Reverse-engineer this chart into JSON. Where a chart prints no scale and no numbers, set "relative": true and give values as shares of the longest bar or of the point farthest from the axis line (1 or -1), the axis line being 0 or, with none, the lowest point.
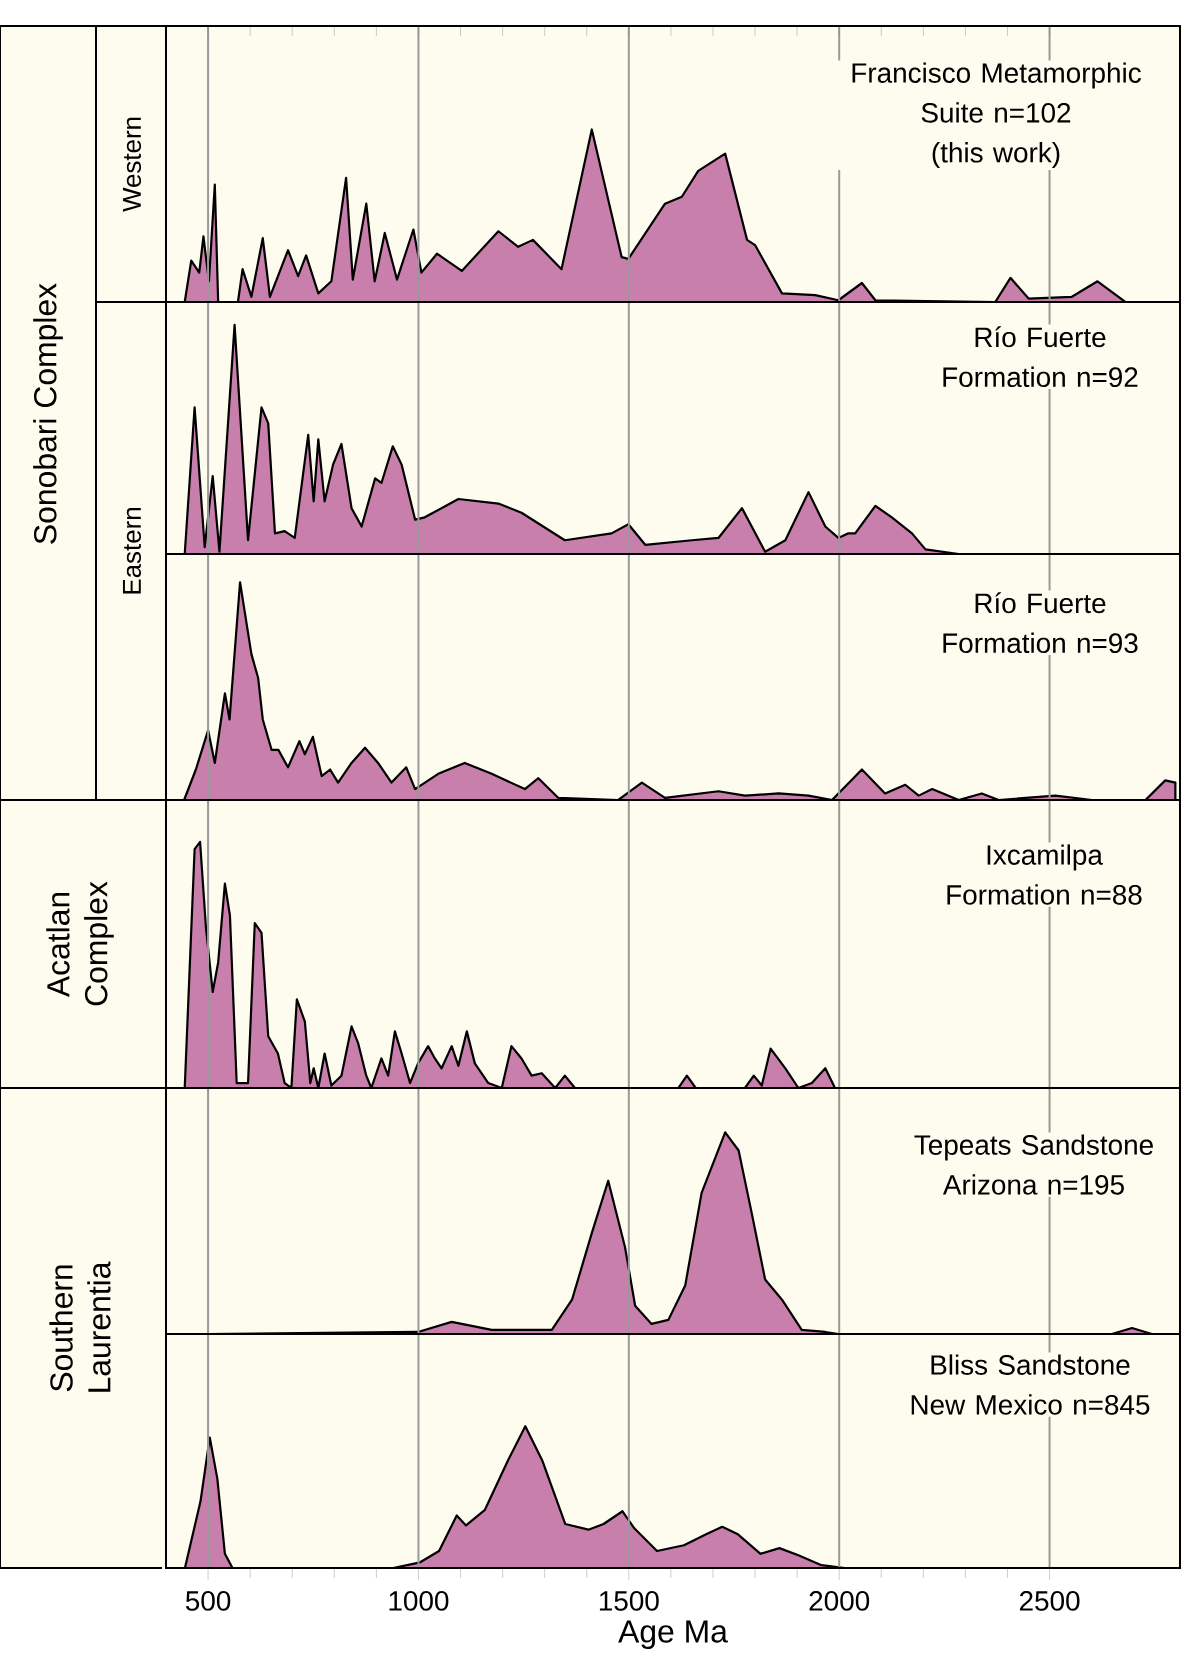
{
  "chart_data": [
    {
      "type": "area",
      "relative": true,
      "title": "Francisco  Metamorphic Suite n=102",
      "subtitle": "(this work)",
      "ylabel": "Western",
      "annotations": [
        "Sonobari Complex"
      ],
      "color": "#c97fac",
      "xlim": [
        400,
        2810
      ],
      "xticks": [
        500,
        1000,
        1500,
        2000,
        2500
      ],
      "grid": "x",
      "tick_labels": false,
      "x": [
        444.5,
        460,
        479,
        489,
        502,
        516,
        524,
        571,
        582,
        603,
        630,
        647,
        690,
        714,
        733,
        762,
        793,
        828,
        844,
        876,
        896,
        920,
        949,
        988,
        1007,
        1044,
        1103,
        1190,
        1237,
        1272,
        1340,
        1412,
        1483,
        1499,
        1586,
        1626,
        1665,
        1729,
        1781,
        1800,
        1864,
        1943,
        1998,
        2054,
        2086,
        2371,
        2407,
        2450,
        2553,
        2614,
        2680
      ],
      "values": [
        0,
        0.24,
        0.17,
        0.38,
        0.12,
        0.68,
        0,
        0,
        0.19,
        0.03,
        0.37,
        0.03,
        0.3,
        0.15,
        0.27,
        0.05,
        0.12,
        0.72,
        0.13,
        0.57,
        0.12,
        0.4,
        0.13,
        0.42,
        0.17,
        0.28,
        0.18,
        0.41,
        0.32,
        0.36,
        0.19,
        1,
        0.26,
        0.25,
        0.57,
        0.61,
        0.76,
        0.86,
        0.36,
        0.33,
        0.05,
        0.04,
        0.01,
        0.11,
        0.01,
        0,
        0.14,
        0.02,
        0.03,
        0.12,
        0
      ]
    },
    {
      "type": "area",
      "relative": true,
      "title": "Río Fuerte Formation n=92",
      "ylabel": "Eastern",
      "color": "#c97fac",
      "xlim": [
        400,
        2810
      ],
      "xticks": [
        500,
        1000,
        1500,
        2000,
        2500
      ],
      "grid": "x",
      "tick_labels": false,
      "x": [
        444.5,
        468,
        492,
        511,
        527,
        563,
        595,
        627,
        643,
        659,
        682,
        706,
        738,
        751,
        762,
        777,
        797,
        817,
        841,
        865,
        897,
        912,
        939,
        960,
        992,
        1015,
        1095,
        1190,
        1245,
        1348,
        1459,
        1499,
        1539,
        1650,
        1713,
        1769,
        1824,
        1872,
        1927,
        1967,
        1998,
        2022,
        2038,
        2086,
        2125,
        2173,
        2205,
        2284
      ],
      "values": [
        0,
        0.64,
        0.03,
        0.34,
        0.01,
        1,
        0.06,
        0.64,
        0.57,
        0.09,
        0.1,
        0.07,
        0.52,
        0.23,
        0.5,
        0.23,
        0.39,
        0.48,
        0.2,
        0.12,
        0.33,
        0.31,
        0.47,
        0.39,
        0.15,
        0.16,
        0.24,
        0.22,
        0.18,
        0.06,
        0.09,
        0.13,
        0.04,
        0.06,
        0.07,
        0.2,
        0.01,
        0.06,
        0.27,
        0.12,
        0.07,
        0.09,
        0.09,
        0.21,
        0.16,
        0.09,
        0.02,
        0
      ]
    },
    {
      "type": "area",
      "relative": true,
      "title": "Río Fuerte Formation  n=93",
      "color": "#c97fac",
      "xlim": [
        400,
        2810
      ],
      "xticks": [
        500,
        1000,
        1500,
        2000,
        2500
      ],
      "grid": "x",
      "tick_labels": false,
      "x": [
        443,
        471,
        500,
        516,
        540,
        551,
        576,
        603,
        619,
        630,
        651,
        667,
        690,
        717,
        730,
        749,
        770,
        790,
        809,
        841,
        873,
        904,
        936,
        971,
        992,
        1047,
        1110,
        1174,
        1253,
        1285,
        1332,
        1475,
        1531,
        1586,
        1713,
        1776,
        1856,
        1927,
        1983,
        2054,
        2109,
        2157,
        2189,
        2221,
        2284,
        2339,
        2379,
        2514,
        2601,
        2728,
        2775,
        2799
      ],
      "values": [
        0,
        0.14,
        0.32,
        0.17,
        0.49,
        0.37,
        1,
        0.67,
        0.56,
        0.37,
        0.23,
        0.23,
        0.15,
        0.27,
        0.21,
        0.29,
        0.11,
        0.14,
        0.08,
        0.17,
        0.24,
        0.17,
        0.08,
        0.15,
        0.05,
        0.12,
        0.17,
        0.12,
        0.05,
        0.1,
        0.01,
        0,
        0.08,
        0.01,
        0.04,
        0.02,
        0.03,
        0.02,
        0,
        0.14,
        0.03,
        0.07,
        0.02,
        0.05,
        0,
        0.03,
        0,
        0.02,
        0,
        0,
        0.09,
        0.08
      ]
    },
    {
      "type": "area",
      "relative": true,
      "title": "Ixcamilpa Formation  n=88",
      "ylabel": "Acatlan Complex",
      "color": "#c97fac",
      "xlim": [
        400,
        2810
      ],
      "xticks": [
        500,
        1000,
        1500,
        2000,
        2500
      ],
      "grid": "x",
      "tick_labels": false,
      "x": [
        444.5,
        468,
        481,
        495,
        511,
        524,
        540,
        552,
        568,
        595,
        611,
        627,
        643,
        666,
        682,
        698,
        711,
        730,
        743,
        751,
        762,
        777,
        793,
        817,
        841,
        857,
        876,
        888,
        912,
        928,
        944,
        960,
        980,
        999,
        1023,
        1039,
        1055,
        1079,
        1095,
        1115,
        1134,
        1166,
        1198,
        1221,
        1245,
        1269,
        1293,
        1325,
        1348,
        1372,
        1618,
        1638,
        1659,
        1776,
        1797,
        1816,
        1837,
        1872,
        1903,
        1935,
        1967,
        1990
      ],
      "values": [
        0,
        0.97,
        1,
        0.65,
        0.39,
        0.51,
        0.83,
        0.7,
        0.02,
        0.02,
        0.67,
        0.63,
        0.21,
        0.14,
        0.02,
        0,
        0.36,
        0.27,
        0.02,
        0.08,
        0,
        0.14,
        0.01,
        0.05,
        0.25,
        0.18,
        0.05,
        0,
        0.12,
        0.05,
        0.23,
        0.14,
        0.02,
        0.1,
        0.17,
        0.12,
        0.08,
        0.17,
        0.09,
        0.23,
        0.1,
        0.02,
        0,
        0.17,
        0.12,
        0.05,
        0.06,
        0,
        0.05,
        0,
        0,
        0.05,
        0,
        0,
        0.05,
        0.01,
        0.16,
        0.08,
        0,
        0.02,
        0.08,
        0
      ]
    },
    {
      "type": "area",
      "relative": true,
      "title": "Tepeats Sandstone Arizona n=195",
      "ylabel": "Southern Laurentia",
      "color": "#c97fac",
      "xlim": [
        400,
        2810
      ],
      "xticks": [
        500,
        1000,
        1500,
        2000,
        2500
      ],
      "grid": "x",
      "tick_labels": false,
      "x": [
        500,
        999,
        1079,
        1174,
        1317,
        1365,
        1412,
        1451,
        1491,
        1515,
        1554,
        1594,
        1634,
        1673,
        1729,
        1761,
        1792,
        1824,
        1864,
        1911,
        1967,
        1998,
        2648,
        2696,
        2743
      ],
      "values": [
        0,
        0.01,
        0.06,
        0.02,
        0.02,
        0.17,
        0.5,
        0.76,
        0.43,
        0.14,
        0.05,
        0.07,
        0.24,
        0.7,
        1,
        0.91,
        0.6,
        0.27,
        0.17,
        0.02,
        0.01,
        0,
        0,
        0.03,
        0
      ]
    },
    {
      "type": "area",
      "relative": true,
      "title": "Bliss Sandstone New Mexico n=845",
      "xlabel": "Age Ma",
      "color": "#c97fac",
      "xlim": [
        400,
        2810
      ],
      "xticks": [
        500,
        1000,
        1500,
        2000,
        2500
      ],
      "grid": "x",
      "tick_labels": "x",
      "x": [
        445,
        482,
        504,
        522,
        540,
        558,
        940,
        1004,
        1049,
        1091,
        1113,
        1158,
        1213,
        1254,
        1294,
        1349,
        1404,
        1440,
        1485,
        1513,
        1567,
        1631,
        1685,
        1722,
        1758,
        1813,
        1858,
        1903,
        1958,
        2013
      ],
      "values": [
        0,
        0.47,
        0.92,
        0.63,
        0.1,
        0,
        0,
        0.04,
        0.12,
        0.37,
        0.3,
        0.41,
        0.76,
        1,
        0.76,
        0.31,
        0.27,
        0.31,
        0.4,
        0.28,
        0.12,
        0.16,
        0.24,
        0.29,
        0.24,
        0.1,
        0.14,
        0.09,
        0.02,
        0
      ]
    }
  ]
}
